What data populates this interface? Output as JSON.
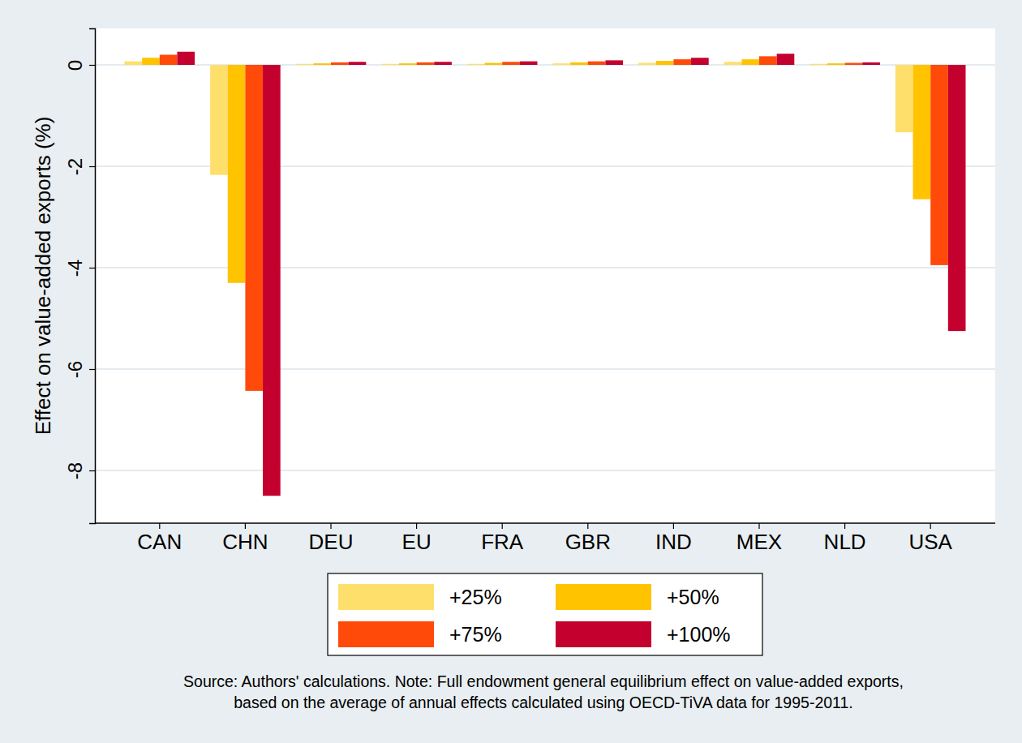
{
  "chart_data": {
    "type": "bar",
    "y_label": "Effect on value-added exports (%)",
    "annotations": [
      "Source: Authors' calculations. Note: Full endowment general equilibrium effect on value-added exports,",
      "based on the average of annual effects calculated using OECD-TiVA data for 1995-2011."
    ],
    "categories": [
      "CAN",
      "CHN",
      "DEU",
      "EU",
      "FRA",
      "GBR",
      "IND",
      "MEX",
      "NLD",
      "USA"
    ],
    "series": [
      {
        "name": "+25%",
        "color": "#ffdf6b",
        "values": [
          0.07,
          -2.17,
          0.02,
          0.02,
          0.02,
          0.03,
          0.04,
          0.06,
          0.02,
          -1.33
        ]
      },
      {
        "name": "+50%",
        "color": "#ffc300",
        "values": [
          0.14,
          -4.3,
          0.03,
          0.03,
          0.04,
          0.05,
          0.08,
          0.11,
          0.03,
          -2.65
        ]
      },
      {
        "name": "+75%",
        "color": "#ff4a0a",
        "values": [
          0.2,
          -6.43,
          0.05,
          0.05,
          0.06,
          0.07,
          0.11,
          0.17,
          0.04,
          -3.95
        ]
      },
      {
        "name": "+100%",
        "color": "#c4002f",
        "values": [
          0.26,
          -8.5,
          0.06,
          0.06,
          0.07,
          0.09,
          0.14,
          0.22,
          0.05,
          -5.25
        ]
      }
    ],
    "ylim": [
      -9.04,
      0.72
    ],
    "yticks": [
      -8,
      -6,
      -4,
      -2,
      0
    ],
    "grid": true,
    "legend": "bottom"
  }
}
